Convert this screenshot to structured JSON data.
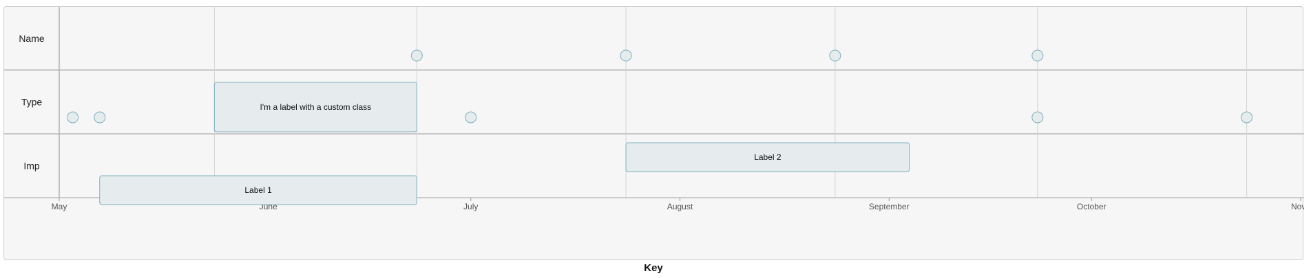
{
  "chart_data": {
    "type": "timeline",
    "groups": [
      "Name",
      "Type",
      "Imp"
    ],
    "axis": {
      "title": "Key",
      "range": [
        "2013-05-01",
        "2013-11-01"
      ],
      "ticks": [
        {
          "date": "2013-05-01",
          "label": "May"
        },
        {
          "date": "2013-06-01",
          "label": "June"
        },
        {
          "date": "2013-07-01",
          "label": "July"
        },
        {
          "date": "2013-08-01",
          "label": "August"
        },
        {
          "date": "2013-09-01",
          "label": "September"
        },
        {
          "date": "2013-10-01",
          "label": "October"
        },
        {
          "date": "2013-11-01",
          "label": "Nove"
        }
      ],
      "gridlines": [
        "2013-05-24",
        "2013-06-23",
        "2013-07-24",
        "2013-08-24",
        "2013-09-23",
        "2013-10-24"
      ]
    },
    "points": [
      {
        "group": "Name",
        "date": "2013-06-23"
      },
      {
        "group": "Name",
        "date": "2013-07-24"
      },
      {
        "group": "Name",
        "date": "2013-08-24"
      },
      {
        "group": "Name",
        "date": "2013-09-23"
      },
      {
        "group": "Type",
        "date": "2013-05-03"
      },
      {
        "group": "Type",
        "date": "2013-05-07"
      },
      {
        "group": "Type",
        "date": "2013-07-01"
      },
      {
        "group": "Type",
        "date": "2013-09-23"
      },
      {
        "group": "Type",
        "date": "2013-10-24"
      }
    ],
    "ranges": [
      {
        "group": "Type",
        "start": "2013-05-24",
        "end": "2013-06-23",
        "label": "I'm a label with a custom class",
        "lane": 0
      },
      {
        "group": "Imp",
        "start": "2013-07-24",
        "end": "2013-09-04",
        "label": "Label 2",
        "lane": 0
      },
      {
        "group": "Imp",
        "start": "2013-05-07",
        "end": "2013-06-23",
        "label": "Label 1",
        "lane": 1
      }
    ]
  },
  "colors": {
    "item_fill": "#e6eced",
    "item_stroke": "#7fb0c0",
    "grid": "#d3d3d3",
    "row_divider": "#c8c8c8"
  }
}
